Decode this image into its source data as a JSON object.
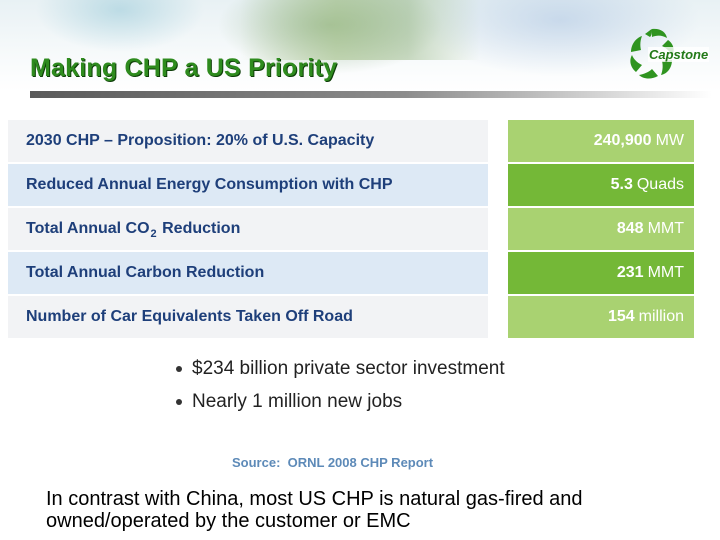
{
  "slide": {
    "title": "Making CHP a US Priority",
    "logo_text": "Capstone"
  },
  "stats": [
    {
      "label": "2030 CHP – Proposition: 20% of U.S. Capacity",
      "value": "240,900",
      "unit": "MW"
    },
    {
      "label": "Reduced Annual Energy Consumption with CHP",
      "value": "5.3",
      "unit": "Quads"
    },
    {
      "label_pre": "Total Annual CO",
      "label_sub": "2",
      "label_post": " Reduction",
      "value": "848",
      "unit": "MMT"
    },
    {
      "label": "Total Annual Carbon Reduction",
      "value": "231",
      "unit": "MMT"
    },
    {
      "label": "Number of Car Equivalents Taken Off Road",
      "value": "154",
      "unit": "million"
    }
  ],
  "bullets": [
    "$234 billion private sector investment",
    "Nearly 1 million new jobs"
  ],
  "source": "Source:  ORNL 2008 CHP Report",
  "note": "In contrast with China, most US CHP is natural gas-fired and owned/operated by the customer or EMC",
  "colors": {
    "title_green": "#2e8b1e",
    "label_blue": "#1e3f7a",
    "value_green_light": "#a9d271",
    "value_green_dark": "#74b837",
    "source_blue": "#5d8ab8"
  }
}
